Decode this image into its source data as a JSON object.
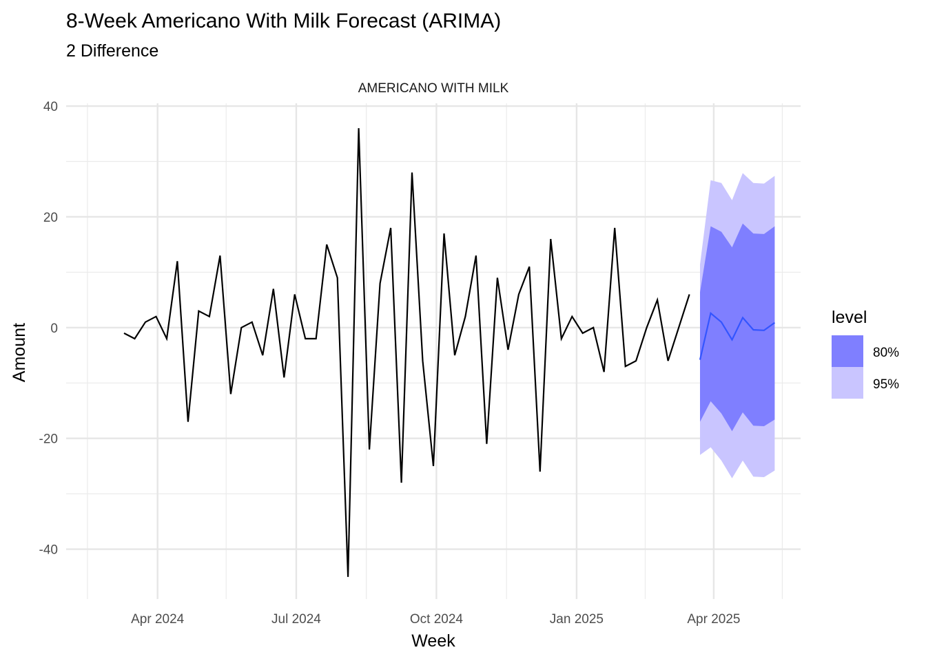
{
  "chart_data": {
    "type": "line",
    "title": "8-Week Americano With Milk Forecast (ARIMA)",
    "subtitle": "2 Difference",
    "facet_label": "AMERICANO WITH MILK",
    "xlabel": "Week",
    "ylabel": "Amount",
    "ylim": [
      -49,
      40.5
    ],
    "xlim": [
      "2024-02-01",
      "2025-05-28"
    ],
    "y_ticks": [
      40,
      20,
      0,
      -20,
      -40
    ],
    "y_tick_labels": [
      "40",
      "20",
      "0",
      "-20",
      "-40"
    ],
    "y_minor_ticks": [
      30,
      10,
      -10,
      -30
    ],
    "x_ticks": [
      "2024-04-01",
      "2024-07-01",
      "2024-10-01",
      "2025-01-01",
      "2025-04-01"
    ],
    "x_tick_labels": [
      "Apr 2024",
      "Jul 2024",
      "Oct 2024",
      "Jan 2025",
      "Apr 2025"
    ],
    "x_minor_ticks": [
      "2024-02-15",
      "2024-05-16",
      "2024-08-16",
      "2024-11-16",
      "2025-02-15",
      "2025-05-16"
    ],
    "grid": true,
    "history": {
      "name": "Observed",
      "color": "#000000",
      "start_week": "2024-03-10",
      "values": [
        -1,
        -2,
        1,
        2,
        -2,
        12,
        -17,
        3,
        2,
        13,
        -12,
        0,
        1,
        -5,
        7,
        -9,
        6,
        -2,
        -2,
        15,
        9,
        -45,
        36,
        -22,
        8,
        18,
        -28,
        28,
        -6,
        -25,
        17,
        -5,
        2,
        13,
        -21,
        9,
        -4,
        6,
        11,
        -26,
        16,
        -2,
        2,
        -1,
        0,
        -8,
        18,
        -7,
        -6,
        0,
        5,
        -6,
        0,
        6
      ]
    },
    "forecast": {
      "name": "Forecast",
      "color": "#3355ff",
      "start_week": "2025-03-23",
      "mean": [
        -5.8,
        2.6,
        1.0,
        -2.2,
        1.8,
        -0.4,
        -0.5,
        0.9
      ],
      "lo80": [
        -17.0,
        -13.3,
        -15.5,
        -18.7,
        -15.3,
        -17.7,
        -17.8,
        -16.6
      ],
      "hi80": [
        6.4,
        18.3,
        17.3,
        14.5,
        18.8,
        17.0,
        16.9,
        18.3
      ],
      "lo95": [
        -23.0,
        -21.6,
        -24.0,
        -27.2,
        -24.0,
        -26.9,
        -27.0,
        -25.8
      ],
      "hi95": [
        11.4,
        26.6,
        26.1,
        23.0,
        27.9,
        26.1,
        26.0,
        27.4
      ]
    },
    "legend": {
      "title": "level",
      "placement": "right",
      "items": [
        {
          "label": "80%",
          "color": "#7f7fff"
        },
        {
          "label": "95%",
          "color": "#c9c5ff"
        }
      ]
    }
  }
}
